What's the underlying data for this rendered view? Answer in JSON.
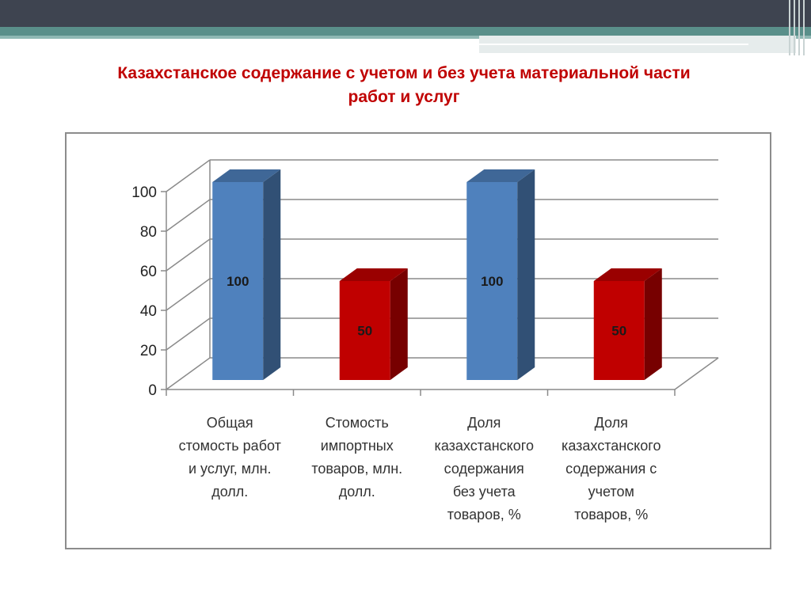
{
  "slide": {
    "title_line1": "Казахстанское содержание с учетом и без учета материальной части",
    "title_line2": "работ и услуг"
  },
  "chart_data": {
    "type": "bar",
    "style": "3d-column",
    "title": "",
    "xlabel": "",
    "ylabel": "",
    "ylim": [
      0,
      100
    ],
    "yticks": [
      0,
      20,
      40,
      60,
      80,
      100
    ],
    "grid": true,
    "legend": "none",
    "categories": [
      [
        "Общая",
        "стомость работ",
        "и услуг, млн.",
        "долл."
      ],
      [
        "Стомость",
        "импортных",
        "товаров, млн.",
        "долл."
      ],
      [
        "Доля",
        "казахстанского",
        "содержания",
        "без учета",
        "товаров, %"
      ],
      [
        "Доля",
        "казахстанского",
        "содержания с",
        "учетом",
        "товаров, %"
      ]
    ],
    "values": [
      100,
      50,
      100,
      50
    ],
    "data_labels": [
      "100",
      "50",
      "100",
      "50"
    ],
    "colors": [
      "#4f81bd",
      "#c00000",
      "#4f81bd",
      "#c00000"
    ]
  }
}
